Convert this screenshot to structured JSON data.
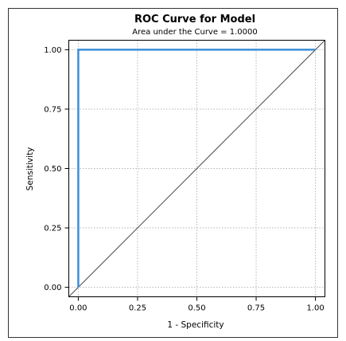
{
  "chart_data": {
    "type": "line",
    "title": "ROC Curve for Model",
    "subtitle": "Area under the Curve = 1.0000",
    "xlabel": "1 - Specificity",
    "ylabel": "Sensitivity",
    "xlim": [
      -0.04,
      1.04
    ],
    "ylim": [
      -0.04,
      1.04
    ],
    "x_ticks": [
      "0.00",
      "0.25",
      "0.50",
      "0.75",
      "1.00"
    ],
    "y_ticks": [
      "0.00",
      "0.25",
      "0.50",
      "0.75",
      "1.00"
    ],
    "grid": "dotted",
    "legend": "none",
    "series": [
      {
        "x": [
          0,
          0,
          1
        ],
        "y": [
          0,
          1,
          1
        ],
        "color": "#3b8fd6"
      },
      {
        "x": [
          -0.04,
          1.04
        ],
        "y": [
          -0.04,
          1.04
        ],
        "color": "#4d4d4d"
      }
    ]
  }
}
